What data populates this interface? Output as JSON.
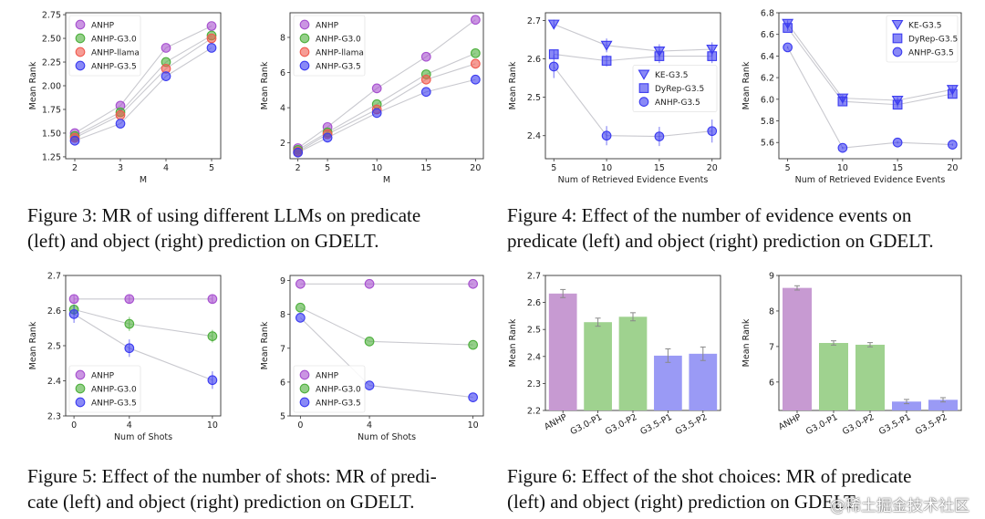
{
  "colors": {
    "ANHP": "#a64fcf",
    "ANHP-G3.0": "#4caf3b",
    "ANHP-llama": "#f05a4f",
    "ANHP-G3.5": "#3b3bf0",
    "KE-G3.5": "#3b3bf0",
    "DyRep-G3.5": "#3b3bf0",
    "bar_purple": "#c79ad2",
    "bar_green": "#9fd28f",
    "bar_blue": "#9a9af5",
    "line": "#c9c9cf"
  },
  "captions": {
    "fig3": {
      "line1": "Figure 3:  MR of using different LLMs on predicate",
      "line2": "(left) and object (right) prediction on GDELT."
    },
    "fig4": {
      "line1": "Figure 4:  Effect of the number of evidence events on",
      "line2": "predicate (left) and object (right) prediction on GDELT."
    },
    "fig5": {
      "line1": "Figure 5: Effect of the number of shots: MR of predi-",
      "line2": "cate (left) and object (right) prediction on GDELT."
    },
    "fig6": {
      "line1": "Figure 6:  Effect of the shot choices: MR of predicate",
      "line2": "(left) and object (right) prediction on GDELT."
    }
  },
  "watermark": "@稀土掘金技术社区",
  "chart_data": [
    {
      "id": "fig3-left",
      "type": "line",
      "xlabel": "M",
      "ylabel": "Mean Rank",
      "x": [
        2,
        3,
        4,
        5
      ],
      "xticks": [
        "2",
        "3",
        "4",
        "5"
      ],
      "xlim": [
        1.8,
        5.2
      ],
      "ylim": [
        1.23,
        2.77
      ],
      "yticks": [
        "1.25",
        "1.50",
        "1.75",
        "2.00",
        "2.25",
        "2.50",
        "2.75"
      ],
      "ytick_values": [
        1.25,
        1.5,
        1.75,
        2.0,
        2.25,
        2.5,
        2.75
      ],
      "legend": "upper-left",
      "series": [
        {
          "name": "ANHP",
          "marker": "circle",
          "values": [
            1.5,
            1.79,
            2.4,
            2.63
          ]
        },
        {
          "name": "ANHP-G3.0",
          "marker": "circle",
          "values": [
            1.47,
            1.72,
            2.25,
            2.53
          ]
        },
        {
          "name": "ANHP-llama",
          "marker": "circle",
          "values": [
            1.45,
            1.69,
            2.18,
            2.5
          ]
        },
        {
          "name": "ANHP-G3.5",
          "marker": "circle",
          "values": [
            1.42,
            1.6,
            2.1,
            2.4
          ]
        }
      ]
    },
    {
      "id": "fig3-right",
      "type": "line",
      "xlabel": "M",
      "ylabel": "Mean Rank",
      "x": [
        2,
        5,
        10,
        15,
        20
      ],
      "xticks": [
        "2",
        "5",
        "10",
        "15",
        "20"
      ],
      "xlim": [
        1.2,
        20.8
      ],
      "ylim": [
        1.1,
        9.4
      ],
      "yticks": [
        "2",
        "4",
        "6",
        "8"
      ],
      "ytick_values": [
        2,
        4,
        6,
        8
      ],
      "legend": "upper-left",
      "series": [
        {
          "name": "ANHP",
          "marker": "circle",
          "values": [
            1.7,
            2.9,
            5.1,
            6.9,
            9.0
          ]
        },
        {
          "name": "ANHP-G3.0",
          "marker": "circle",
          "values": [
            1.6,
            2.6,
            4.2,
            5.9,
            7.1
          ]
        },
        {
          "name": "ANHP-llama",
          "marker": "circle",
          "values": [
            1.5,
            2.5,
            3.9,
            5.6,
            6.5
          ]
        },
        {
          "name": "ANHP-G3.5",
          "marker": "circle",
          "values": [
            1.45,
            2.3,
            3.7,
            4.9,
            5.6
          ]
        }
      ]
    },
    {
      "id": "fig4-left",
      "type": "line",
      "xlabel": "Num of Retrieved Evidence Events",
      "ylabel": "Mean Rank",
      "x": [
        5,
        10,
        15,
        20
      ],
      "xticks": [
        "5",
        "10",
        "15",
        "20"
      ],
      "xlim": [
        4.2,
        20.8
      ],
      "ylim": [
        2.34,
        2.72
      ],
      "yticks": [
        "2.4",
        "2.5",
        "2.6",
        "2.7"
      ],
      "ytick_values": [
        2.4,
        2.5,
        2.6,
        2.7
      ],
      "legend": "center-right",
      "series": [
        {
          "name": "KE-G3.5",
          "marker": "triangle",
          "values": [
            2.69,
            2.635,
            2.62,
            2.625
          ],
          "err": [
            0.012,
            0.018,
            0.018,
            0.018
          ]
        },
        {
          "name": "DyRep-G3.5",
          "marker": "square",
          "values": [
            2.612,
            2.595,
            2.607,
            2.607
          ],
          "err": [
            0.012,
            0.015,
            0.018,
            0.018
          ]
        },
        {
          "name": "ANHP-G3.5",
          "marker": "circle",
          "values": [
            2.58,
            2.4,
            2.398,
            2.412
          ],
          "err": [
            0.03,
            0.025,
            0.025,
            0.03
          ]
        }
      ]
    },
    {
      "id": "fig4-right",
      "type": "line",
      "xlabel": "Num of Retrieved Evidence Events",
      "ylabel": "Mean Rank",
      "x": [
        5,
        10,
        15,
        20
      ],
      "xticks": [
        "5",
        "10",
        "15",
        "20"
      ],
      "xlim": [
        4.2,
        20.8
      ],
      "ylim": [
        5.45,
        6.8
      ],
      "yticks": [
        "5.6",
        "5.8",
        "6.0",
        "6.2",
        "6.4",
        "6.6",
        "6.8"
      ],
      "ytick_values": [
        5.6,
        5.8,
        6.0,
        6.2,
        6.4,
        6.6,
        6.8
      ],
      "legend": "upper-right",
      "series": [
        {
          "name": "KE-G3.5",
          "marker": "triangle",
          "values": [
            6.7,
            6.01,
            5.99,
            6.09
          ],
          "err": [
            0.03,
            0.03,
            0.03,
            0.03
          ]
        },
        {
          "name": "DyRep-G3.5",
          "marker": "square",
          "values": [
            6.66,
            5.98,
            5.95,
            6.05
          ],
          "err": [
            0.03,
            0.03,
            0.03,
            0.03
          ]
        },
        {
          "name": "ANHP-G3.5",
          "marker": "circle",
          "values": [
            6.48,
            5.55,
            5.6,
            5.58
          ],
          "err": [
            0.01,
            0.01,
            0.01,
            0.01
          ]
        }
      ]
    },
    {
      "id": "fig5-left",
      "type": "line",
      "xlabel": "Num of Shots",
      "ylabel": "Mean Rank",
      "x": [
        0,
        4,
        10
      ],
      "xticks": [
        "0",
        "4",
        "10"
      ],
      "xlim": [
        -0.6,
        10.6
      ],
      "ylim": [
        2.3,
        2.7
      ],
      "yticks": [
        "2.3",
        "2.4",
        "2.5",
        "2.6",
        "2.7"
      ],
      "ytick_values": [
        2.3,
        2.4,
        2.5,
        2.6,
        2.7
      ],
      "legend": "lower-left",
      "series": [
        {
          "name": "ANHP",
          "marker": "circle",
          "values": [
            2.633,
            2.633,
            2.633
          ],
          "err": [
            0.012,
            0.012,
            0.012
          ]
        },
        {
          "name": "ANHP-G3.0",
          "marker": "circle",
          "values": [
            2.603,
            2.562,
            2.527
          ],
          "err": [
            0.015,
            0.02,
            0.018
          ]
        },
        {
          "name": "ANHP-G3.5",
          "marker": "circle",
          "values": [
            2.59,
            2.493,
            2.402
          ],
          "err": [
            0.025,
            0.025,
            0.025
          ]
        }
      ]
    },
    {
      "id": "fig5-right",
      "type": "line",
      "xlabel": "Num of Shots",
      "ylabel": "Mean Rank",
      "x": [
        0,
        4,
        10
      ],
      "xticks": [
        "0",
        "4",
        "10"
      ],
      "xlim": [
        -0.6,
        10.6
      ],
      "ylim": [
        5,
        9.15
      ],
      "yticks": [
        "5",
        "6",
        "7",
        "8",
        "9"
      ],
      "ytick_values": [
        5,
        6,
        7,
        8,
        9
      ],
      "legend": "lower-left",
      "series": [
        {
          "name": "ANHP",
          "marker": "circle",
          "values": [
            8.9,
            8.9,
            8.9
          ]
        },
        {
          "name": "ANHP-G3.0",
          "marker": "circle",
          "values": [
            8.2,
            7.2,
            7.1
          ]
        },
        {
          "name": "ANHP-G3.5",
          "marker": "circle",
          "values": [
            7.9,
            5.9,
            5.55
          ]
        }
      ]
    },
    {
      "id": "fig6-left",
      "type": "bar",
      "xlabel": "",
      "ylabel": "Mean Rank",
      "categories": [
        "ANHP",
        "G3.0-P1",
        "G3.0-P2",
        "G3.5-P1",
        "G3.5-P2"
      ],
      "values": [
        2.633,
        2.527,
        2.547,
        2.403,
        2.41
      ],
      "err": [
        0.015,
        0.015,
        0.015,
        0.025,
        0.025
      ],
      "bar_colors": [
        "bar_purple",
        "bar_green",
        "bar_green",
        "bar_blue",
        "bar_blue"
      ],
      "ylim": [
        2.2,
        2.7
      ],
      "yticks": [
        "2.2",
        "2.3",
        "2.4",
        "2.5",
        "2.6",
        "2.7"
      ],
      "ytick_values": [
        2.2,
        2.3,
        2.4,
        2.5,
        2.6,
        2.7
      ]
    },
    {
      "id": "fig6-right",
      "type": "bar",
      "xlabel": "",
      "ylabel": "Mean Rank",
      "categories": [
        "ANHP",
        "G3.0-P1",
        "G3.0-P2",
        "G3.5-P1",
        "G3.5-P2"
      ],
      "values": [
        8.65,
        7.1,
        7.05,
        5.45,
        5.5
      ],
      "err": [
        0.06,
        0.06,
        0.06,
        0.06,
        0.06
      ],
      "bar_colors": [
        "bar_purple",
        "bar_green",
        "bar_green",
        "bar_blue",
        "bar_blue"
      ],
      "ylim": [
        5.2,
        9.0
      ],
      "yticks": [
        "6",
        "7",
        "8",
        "9"
      ],
      "ytick_values": [
        6,
        7,
        8,
        9
      ]
    }
  ]
}
